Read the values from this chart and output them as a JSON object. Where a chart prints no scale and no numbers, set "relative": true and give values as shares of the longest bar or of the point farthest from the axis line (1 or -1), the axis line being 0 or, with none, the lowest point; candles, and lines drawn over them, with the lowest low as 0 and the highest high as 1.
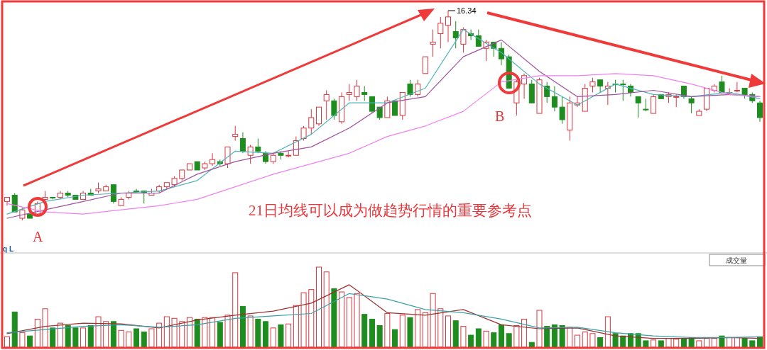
{
  "chart_data": [
    {
      "type": "candlestick",
      "relative": true,
      "categories": [
        null,
        null,
        null,
        null,
        null,
        null,
        null,
        null,
        null,
        null,
        null,
        null,
        null,
        null,
        null,
        null,
        null,
        null,
        null,
        null,
        null,
        null,
        null,
        null,
        null,
        null,
        null,
        null,
        null,
        null,
        null,
        null,
        null,
        null,
        null,
        null,
        null,
        null,
        null,
        null,
        null,
        null,
        null,
        null,
        null,
        null,
        null,
        null,
        null,
        null,
        null,
        null,
        null,
        null,
        null,
        null,
        null,
        null,
        null,
        null,
        null,
        null,
        null,
        null,
        null,
        null,
        null,
        null,
        null,
        null,
        null,
        null,
        null,
        null,
        null,
        null,
        null,
        null,
        null,
        null,
        null,
        null,
        null,
        null,
        null,
        null,
        null,
        null,
        null,
        null,
        null,
        null,
        null,
        null,
        null,
        null,
        null,
        null,
        null,
        null
      ],
      "ohlc": [
        [
          0.09,
          0.11,
          0.07,
          0.11
        ],
        [
          0.12,
          0.13,
          0.04,
          0.04
        ],
        [
          0.01,
          0.06,
          0,
          0.05
        ],
        [
          0.03,
          0.03,
          0.01,
          0.01
        ],
        [
          0.03,
          0.09,
          0.03,
          0.08
        ],
        [
          0.1,
          0.14,
          0.09,
          0.11
        ],
        [
          0.11,
          0.11,
          0.1,
          0.11
        ],
        [
          0.11,
          0.14,
          0.1,
          0.13
        ],
        [
          0.13,
          0.14,
          0.11,
          0.12
        ],
        [
          0.12,
          0.12,
          0.1,
          0.1
        ],
        [
          0.1,
          0.14,
          0.1,
          0.13
        ],
        [
          0.13,
          0.15,
          0.12,
          0.12
        ],
        [
          0.14,
          0.18,
          0.13,
          0.15
        ],
        [
          0.14,
          0.17,
          0.14,
          0.16
        ],
        [
          0.17,
          0.17,
          0.08,
          0.09
        ],
        [
          0.07,
          0.11,
          0.07,
          0.1
        ],
        [
          0.11,
          0.14,
          0.1,
          0.13
        ],
        [
          0.14,
          0.15,
          0.13,
          0.14
        ],
        [
          0.14,
          0.14,
          0.08,
          0.13
        ],
        [
          0.12,
          0.15,
          0.12,
          0.13
        ],
        [
          0.14,
          0.17,
          0.13,
          0.16
        ],
        [
          0.16,
          0.18,
          0.15,
          0.18
        ],
        [
          0.17,
          0.21,
          0.16,
          0.2
        ],
        [
          0.2,
          0.24,
          0.19,
          0.24
        ],
        [
          0.24,
          0.27,
          0.24,
          0.27
        ],
        [
          0.28,
          0.28,
          0.24,
          0.24
        ],
        [
          0.25,
          0.28,
          0.24,
          0.27
        ],
        [
          0.27,
          0.32,
          0.26,
          0.29
        ],
        [
          0.28,
          0.29,
          0.26,
          0.27
        ],
        [
          0.27,
          0.35,
          0.25,
          0.35
        ],
        [
          0.4,
          0.45,
          0.38,
          0.41
        ],
        [
          0.39,
          0.42,
          0.32,
          0.33
        ],
        [
          0.31,
          0.36,
          0.27,
          0.35
        ],
        [
          0.35,
          0.39,
          0.32,
          0.33
        ],
        [
          0.32,
          0.33,
          0.27,
          0.28
        ],
        [
          0.28,
          0.32,
          0.27,
          0.31
        ],
        [
          0.32,
          0.33,
          0.29,
          0.31
        ],
        [
          0.31,
          0.33,
          0.3,
          0.31
        ],
        [
          0.31,
          0.4,
          0.31,
          0.38
        ],
        [
          0.39,
          0.45,
          0.38,
          0.44
        ],
        [
          0.44,
          0.53,
          0.41,
          0.49
        ],
        [
          0.46,
          0.54,
          0.45,
          0.54
        ],
        [
          0.57,
          0.62,
          0.48,
          0.6
        ],
        [
          0.57,
          0.58,
          0.48,
          0.5
        ],
        [
          0.47,
          0.61,
          0.46,
          0.59
        ],
        [
          0.6,
          0.65,
          0.57,
          0.61
        ],
        [
          0.59,
          0.67,
          0.57,
          0.64
        ],
        [
          0.61,
          0.64,
          0.57,
          0.6
        ],
        [
          0.59,
          0.59,
          0.51,
          0.52
        ],
        [
          0.54,
          0.54,
          0.48,
          0.49
        ],
        [
          0.49,
          0.59,
          0.49,
          0.57
        ],
        [
          0.57,
          0.57,
          0.5,
          0.5
        ],
        [
          0.5,
          0.61,
          0.48,
          0.61
        ],
        [
          0.65,
          0.67,
          0.59,
          0.6
        ],
        [
          0.6,
          0.67,
          0.59,
          0.65
        ],
        [
          0.7,
          0.78,
          0.7,
          0.78
        ],
        [
          0.84,
          0.91,
          0.78,
          0.85
        ],
        [
          0.89,
          0.97,
          0.82,
          0.94
        ],
        [
          0.93,
          1,
          0.85,
          0.97
        ],
        [
          0.9,
          0.95,
          0.82,
          0.87
        ],
        [
          0.84,
          0.92,
          0.8,
          0.91
        ],
        [
          0.89,
          0.91,
          0.86,
          0.88
        ],
        [
          0.88,
          0.91,
          0.83,
          0.83
        ],
        [
          0.82,
          0.86,
          0.76,
          0.85
        ],
        [
          0.85,
          0.85,
          0.78,
          0.82
        ],
        [
          0.82,
          0.85,
          0.74,
          0.77
        ],
        [
          0.78,
          0.79,
          0.63,
          0.63
        ],
        [
          0.56,
          0.67,
          0.5,
          0.66
        ],
        [
          0.65,
          0.7,
          0.58,
          0.69
        ],
        [
          0.65,
          0.67,
          0.56,
          0.56
        ],
        [
          0.51,
          0.68,
          0.51,
          0.67
        ],
        [
          0.64,
          0.66,
          0.56,
          0.59
        ],
        [
          0.59,
          0.64,
          0.52,
          0.54
        ],
        [
          0.54,
          0.59,
          0.46,
          0.48
        ],
        [
          0.43,
          0.59,
          0.38,
          0.56
        ],
        [
          0.55,
          0.59,
          0.54,
          0.56
        ],
        [
          0.52,
          0.65,
          0.52,
          0.63
        ],
        [
          0.64,
          0.68,
          0.61,
          0.66
        ],
        [
          0.67,
          0.67,
          0.61,
          0.64
        ],
        [
          0.63,
          0.66,
          0.55,
          0.64
        ],
        [
          0.65,
          0.67,
          0.61,
          0.65
        ],
        [
          0.65,
          0.67,
          0.57,
          0.65
        ],
        [
          0.64,
          0.65,
          0.59,
          0.61
        ],
        [
          0.59,
          0.59,
          0.49,
          0.56
        ],
        [
          0.53,
          0.58,
          0.52,
          0.53
        ],
        [
          0.51,
          0.6,
          0.51,
          0.59
        ],
        [
          0.6,
          0.6,
          0.58,
          0.58
        ],
        [
          0.59,
          0.61,
          0.56,
          0.6
        ],
        [
          0.59,
          0.6,
          0.54,
          0.59
        ],
        [
          0.64,
          0.64,
          0.58,
          0.59
        ],
        [
          0.58,
          0.59,
          0.51,
          0.56
        ],
        [
          0.5,
          0.53,
          0.5,
          0.52
        ],
        [
          0.53,
          0.63,
          0.52,
          0.63
        ],
        [
          0.62,
          0.65,
          0.61,
          0.64
        ],
        [
          0.66,
          0.69,
          0.61,
          0.61
        ],
        [
          0.61,
          0.63,
          0.6,
          0.61
        ],
        [
          0.62,
          0.66,
          0.61,
          0.62
        ],
        [
          0.63,
          0.63,
          0.58,
          0.6
        ],
        [
          0.6,
          0.61,
          0.56,
          0.57
        ],
        [
          0.56,
          0.57,
          0.47,
          0.49
        ]
      ],
      "colors": [
        "#d9363e",
        "#1e8c1e",
        "#d9363e",
        "#1e8c1e",
        "#d9363e",
        "#d9363e",
        "#1e8c1e",
        "#d9363e",
        "#1e8c1e",
        "#1e8c1e",
        "#d9363e",
        "#1e8c1e",
        "#d9363e",
        "#d9363e",
        "#1e8c1e",
        "#d9363e",
        "#d9363e",
        "#1e8c1e",
        "#1e8c1e",
        "#d9363e",
        "#d9363e",
        "#d9363e",
        "#d9363e",
        "#d9363e",
        "#d9363e",
        "#1e8c1e",
        "#d9363e",
        "#d9363e",
        "#1e8c1e",
        "#d9363e",
        "#d9363e",
        "#1e8c1e",
        "#d9363e",
        "#1e8c1e",
        "#1e8c1e",
        "#d9363e",
        "#1e8c1e",
        "#d9363e",
        "#d9363e",
        "#d9363e",
        "#d9363e",
        "#d9363e",
        "#d9363e",
        "#1e8c1e",
        "#d9363e",
        "#d9363e",
        "#d9363e",
        "#1e8c1e",
        "#1e8c1e",
        "#1e8c1e",
        "#d9363e",
        "#1e8c1e",
        "#d9363e",
        "#1e8c1e",
        "#d9363e",
        "#d9363e",
        "#d9363e",
        "#d9363e",
        "#d9363e",
        "#1e8c1e",
        "#d9363e",
        "#1e8c1e",
        "#1e8c1e",
        "#d9363e",
        "#1e8c1e",
        "#1e8c1e",
        "#1e8c1e",
        "#d9363e",
        "#d9363e",
        "#1e8c1e",
        "#d9363e",
        "#1e8c1e",
        "#1e8c1e",
        "#1e8c1e",
        "#d9363e",
        "#d9363e",
        "#d9363e",
        "#d9363e",
        "#1e8c1e",
        "#d9363e",
        "#1e8c1e",
        "#1e8c1e",
        "#1e8c1e",
        "#1e8c1e",
        "#1e8c1e",
        "#d9363e",
        "#1e8c1e",
        "#d9363e",
        "#d9363e",
        "#1e8c1e",
        "#1e8c1e",
        "#d9363e",
        "#d9363e",
        "#d9363e",
        "#1e8c1e",
        "#d9363e",
        "#d9363e",
        "#1e8c1e",
        "#1e8c1e",
        "#1e8c1e"
      ],
      "series": [
        {
          "type": "line",
          "color": "#4fb3b8",
          "values": [
            0.03,
            null,
            null,
            null,
            null,
            0.09,
            null,
            null,
            null,
            null,
            0.12,
            null,
            null,
            null,
            null,
            0.13,
            null,
            null,
            null,
            null,
            0.14,
            null,
            null,
            null,
            null,
            0.19,
            null,
            null,
            null,
            null,
            0.33,
            null,
            null,
            null,
            null,
            0.32,
            null,
            null,
            null,
            null,
            0.41,
            null,
            null,
            null,
            null,
            0.56,
            null,
            null,
            null,
            null,
            0.56,
            null,
            null,
            null,
            null,
            0.63,
            null,
            null,
            null,
            null,
            0.91,
            null,
            null,
            null,
            null,
            0.8,
            null,
            null,
            null,
            null,
            0.65,
            null,
            null,
            null,
            null,
            0.55,
            null,
            null,
            null,
            null,
            0.65,
            null,
            null,
            null,
            null,
            0.6,
            null,
            null,
            null,
            null,
            0.59,
            null,
            null,
            null,
            null,
            0.61,
            null,
            null,
            null,
            0.58
          ]
        },
        {
          "type": "line",
          "color": "#a050a0",
          "values": [
            0.01,
            null,
            null,
            null,
            null,
            0.05,
            null,
            null,
            null,
            null,
            0.09,
            null,
            null,
            null,
            null,
            0.13,
            null,
            null,
            null,
            null,
            0.13,
            null,
            null,
            null,
            null,
            0.22,
            null,
            null,
            null,
            null,
            0.28,
            null,
            null,
            null,
            null,
            0.32,
            null,
            null,
            null,
            null,
            0.35,
            null,
            null,
            null,
            null,
            0.44,
            null,
            null,
            null,
            null,
            0.56,
            null,
            null,
            null,
            null,
            0.59,
            null,
            null,
            null,
            null,
            0.78,
            null,
            null,
            null,
            null,
            0.86,
            null,
            null,
            null,
            null,
            0.71,
            null,
            null,
            null,
            null,
            0.59,
            null,
            null,
            null,
            null,
            0.6,
            null,
            null,
            null,
            null,
            0.62,
            null,
            null,
            null,
            null,
            0.59,
            null,
            null,
            null,
            null,
            0.6,
            null,
            null,
            null,
            0.59
          ]
        },
        {
          "type": "line",
          "color": "#f080f0",
          "values": [
            0.08,
            null,
            null,
            null,
            null,
            0.04,
            null,
            null,
            null,
            null,
            0.03,
            null,
            null,
            null,
            null,
            0.05,
            null,
            null,
            null,
            null,
            0.07,
            null,
            null,
            null,
            null,
            0.1,
            null,
            null,
            null,
            null,
            0.16,
            null,
            null,
            null,
            null,
            0.22,
            null,
            null,
            null,
            null,
            0.27,
            null,
            null,
            null,
            null,
            0.32,
            null,
            null,
            null,
            null,
            0.4,
            null,
            null,
            null,
            null,
            0.45,
            null,
            null,
            null,
            null,
            0.52,
            null,
            null,
            null,
            null,
            0.66,
            null,
            null,
            null,
            null,
            0.69,
            null,
            null,
            null,
            null,
            0.69,
            null,
            null,
            null,
            null,
            0.7,
            null,
            null,
            null,
            null,
            0.69,
            null,
            null,
            null,
            null,
            0.65,
            null,
            null,
            null,
            null,
            0.6,
            null,
            null,
            null,
            0.59
          ]
        }
      ],
      "annotations": [
        "16.34",
        "21日均线可以成为做趋势行情的重要参考点",
        "A",
        "B",
        "q L"
      ]
    },
    {
      "type": "bar",
      "relative": true,
      "categories": [
        null,
        null,
        null,
        null,
        null,
        null,
        null,
        null,
        null,
        null,
        null,
        null,
        null,
        null,
        null,
        null,
        null,
        null,
        null,
        null,
        null,
        null,
        null,
        null,
        null,
        null,
        null,
        null,
        null,
        null,
        null,
        null,
        null,
        null,
        null,
        null,
        null,
        null,
        null,
        null,
        null,
        null,
        null,
        null,
        null,
        null,
        null,
        null,
        null,
        null,
        null,
        null,
        null,
        null,
        null,
        null,
        null,
        null,
        null,
        null,
        null,
        null,
        null,
        null,
        null,
        null,
        null,
        null,
        null,
        null,
        null,
        null,
        null,
        null,
        null,
        null,
        null,
        null,
        null,
        null,
        null,
        null,
        null,
        null,
        null,
        null,
        null,
        null,
        null,
        null,
        null,
        null,
        null,
        null,
        null,
        null,
        null,
        null,
        null,
        null
      ],
      "series": [
        {
          "type": "bar",
          "values": [
            0.13,
            0.44,
            0.18,
            0.14,
            0.35,
            0.48,
            0.24,
            0.3,
            0.27,
            0.24,
            0.24,
            0.27,
            0.38,
            0.32,
            0.32,
            0.21,
            0.19,
            0.23,
            0.19,
            0.23,
            0.3,
            0.38,
            0.36,
            0.32,
            0.37,
            0.35,
            0.37,
            0.37,
            0.31,
            0.4,
            0.93,
            0.51,
            0.39,
            0.35,
            0.32,
            0.24,
            0.28,
            0.29,
            0.52,
            0.68,
            0.72,
            1,
            0.94,
            0.73,
            0.69,
            0.62,
            0.67,
            0.41,
            0.35,
            0.27,
            0.42,
            0.22,
            0.4,
            0.37,
            0.47,
            0.43,
            0.67,
            0.48,
            0.39,
            0.33,
            0.26,
            0.15,
            0.23,
            0.2,
            0.18,
            0.28,
            0.17,
            0.27,
            0.35,
            0.06,
            0.46,
            0.26,
            0.28,
            0.27,
            0.25,
            0.15,
            0.19,
            0.17,
            0.12,
            0.38,
            0.17,
            0.14,
            0.17,
            0.17,
            0.08,
            0.09,
            0.08,
            0.11,
            0.1,
            0.11,
            0.12,
            0.08,
            0.11,
            0.11,
            0.14,
            0.12,
            0.12,
            0.11,
            0.08,
            0.13
          ],
          "colors": [
            "#d9363e",
            "#1e8c1e",
            "#d9363e",
            "#1e8c1e",
            "#d9363e",
            "#d9363e",
            "#1e8c1e",
            "#d9363e",
            "#1e8c1e",
            "#1e8c1e",
            "#d9363e",
            "#1e8c1e",
            "#d9363e",
            "#d9363e",
            "#1e8c1e",
            "#d9363e",
            "#d9363e",
            "#1e8c1e",
            "#1e8c1e",
            "#d9363e",
            "#d9363e",
            "#d9363e",
            "#d9363e",
            "#d9363e",
            "#d9363e",
            "#1e8c1e",
            "#d9363e",
            "#d9363e",
            "#1e8c1e",
            "#d9363e",
            "#d9363e",
            "#1e8c1e",
            "#d9363e",
            "#1e8c1e",
            "#1e8c1e",
            "#d9363e",
            "#1e8c1e",
            "#d9363e",
            "#d9363e",
            "#d9363e",
            "#d9363e",
            "#d9363e",
            "#d9363e",
            "#1e8c1e",
            "#d9363e",
            "#d9363e",
            "#d9363e",
            "#1e8c1e",
            "#1e8c1e",
            "#1e8c1e",
            "#d9363e",
            "#1e8c1e",
            "#d9363e",
            "#1e8c1e",
            "#d9363e",
            "#d9363e",
            "#d9363e",
            "#d9363e",
            "#d9363e",
            "#1e8c1e",
            "#d9363e",
            "#1e8c1e",
            "#1e8c1e",
            "#d9363e",
            "#1e8c1e",
            "#1e8c1e",
            "#1e8c1e",
            "#d9363e",
            "#d9363e",
            "#1e8c1e",
            "#d9363e",
            "#1e8c1e",
            "#1e8c1e",
            "#1e8c1e",
            "#d9363e",
            "#d9363e",
            "#d9363e",
            "#d9363e",
            "#1e8c1e",
            "#d9363e",
            "#1e8c1e",
            "#1e8c1e",
            "#1e8c1e",
            "#1e8c1e",
            "#1e8c1e",
            "#d9363e",
            "#1e8c1e",
            "#d9363e",
            "#d9363e",
            "#1e8c1e",
            "#1e8c1e",
            "#d9363e",
            "#d9363e",
            "#d9363e",
            "#1e8c1e",
            "#d9363e",
            "#d9363e",
            "#1e8c1e",
            "#1e8c1e",
            "#1e8c1e"
          ]
        },
        {
          "type": "line",
          "color": "#a03030",
          "values": [
            0.17,
            null,
            null,
            null,
            null,
            0.26,
            null,
            null,
            null,
            null,
            0.3,
            null,
            null,
            null,
            null,
            0.29,
            null,
            null,
            null,
            null,
            0.24,
            null,
            null,
            null,
            null,
            0.34,
            null,
            null,
            null,
            null,
            0.4,
            null,
            null,
            null,
            null,
            0.45,
            null,
            null,
            null,
            null,
            0.55,
            null,
            null,
            null,
            null,
            0.78,
            null,
            null,
            null,
            null,
            0.43,
            null,
            null,
            null,
            null,
            0.4,
            null,
            null,
            null,
            null,
            0.47,
            null,
            null,
            null,
            null,
            0.28,
            null,
            null,
            null,
            null,
            0.23,
            null,
            null,
            null,
            null,
            0.24,
            null,
            null,
            null,
            null,
            0.14,
            null,
            null,
            null,
            null,
            0.11,
            null,
            null,
            null,
            null,
            0.11,
            null,
            null,
            null,
            null,
            0.12,
            null,
            null,
            null,
            0.11
          ]
        },
        {
          "type": "line",
          "color": "#3aa0a8",
          "values": [
            0.18,
            null,
            null,
            null,
            null,
            0.22,
            null,
            null,
            null,
            null,
            0.26,
            null,
            null,
            null,
            null,
            0.28,
            null,
            null,
            null,
            null,
            0.25,
            null,
            null,
            null,
            null,
            0.28,
            null,
            null,
            null,
            null,
            0.36,
            null,
            null,
            null,
            null,
            0.39,
            null,
            null,
            null,
            null,
            0.42,
            null,
            null,
            null,
            null,
            0.67,
            null,
            null,
            null,
            null,
            0.6,
            null,
            null,
            null,
            null,
            0.47,
            null,
            null,
            null,
            null,
            0.43,
            null,
            null,
            null,
            null,
            0.35,
            null,
            null,
            null,
            null,
            0.24,
            null,
            null,
            null,
            null,
            0.25,
            null,
            null,
            null,
            null,
            0.18,
            null,
            null,
            null,
            null,
            0.14,
            null,
            null,
            null,
            null,
            0.12,
            null,
            null,
            null,
            null,
            0.12,
            null,
            null,
            null,
            0.13
          ]
        }
      ],
      "annotations": [
        "成交量"
      ]
    }
  ]
}
